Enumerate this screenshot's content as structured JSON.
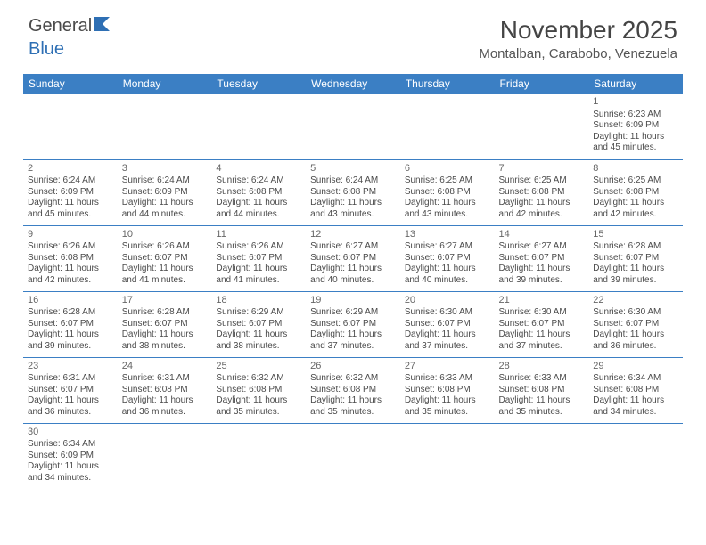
{
  "brand": {
    "name1": "General",
    "name2": "Blue"
  },
  "title": "November 2025",
  "location": "Montalban, Carabobo, Venezuela",
  "colors": {
    "header_bg": "#3b7fc4",
    "header_text": "#ffffff",
    "text": "#4a4a4a",
    "rule": "#3b7fc4"
  },
  "day_names": [
    "Sunday",
    "Monday",
    "Tuesday",
    "Wednesday",
    "Thursday",
    "Friday",
    "Saturday"
  ],
  "weeks": [
    [
      null,
      null,
      null,
      null,
      null,
      null,
      {
        "n": "1",
        "sr": "Sunrise: 6:23 AM",
        "ss": "Sunset: 6:09 PM",
        "dl": "Daylight: 11 hours and 45 minutes."
      }
    ],
    [
      {
        "n": "2",
        "sr": "Sunrise: 6:24 AM",
        "ss": "Sunset: 6:09 PM",
        "dl": "Daylight: 11 hours and 45 minutes."
      },
      {
        "n": "3",
        "sr": "Sunrise: 6:24 AM",
        "ss": "Sunset: 6:09 PM",
        "dl": "Daylight: 11 hours and 44 minutes."
      },
      {
        "n": "4",
        "sr": "Sunrise: 6:24 AM",
        "ss": "Sunset: 6:08 PM",
        "dl": "Daylight: 11 hours and 44 minutes."
      },
      {
        "n": "5",
        "sr": "Sunrise: 6:24 AM",
        "ss": "Sunset: 6:08 PM",
        "dl": "Daylight: 11 hours and 43 minutes."
      },
      {
        "n": "6",
        "sr": "Sunrise: 6:25 AM",
        "ss": "Sunset: 6:08 PM",
        "dl": "Daylight: 11 hours and 43 minutes."
      },
      {
        "n": "7",
        "sr": "Sunrise: 6:25 AM",
        "ss": "Sunset: 6:08 PM",
        "dl": "Daylight: 11 hours and 42 minutes."
      },
      {
        "n": "8",
        "sr": "Sunrise: 6:25 AM",
        "ss": "Sunset: 6:08 PM",
        "dl": "Daylight: 11 hours and 42 minutes."
      }
    ],
    [
      {
        "n": "9",
        "sr": "Sunrise: 6:26 AM",
        "ss": "Sunset: 6:08 PM",
        "dl": "Daylight: 11 hours and 42 minutes."
      },
      {
        "n": "10",
        "sr": "Sunrise: 6:26 AM",
        "ss": "Sunset: 6:07 PM",
        "dl": "Daylight: 11 hours and 41 minutes."
      },
      {
        "n": "11",
        "sr": "Sunrise: 6:26 AM",
        "ss": "Sunset: 6:07 PM",
        "dl": "Daylight: 11 hours and 41 minutes."
      },
      {
        "n": "12",
        "sr": "Sunrise: 6:27 AM",
        "ss": "Sunset: 6:07 PM",
        "dl": "Daylight: 11 hours and 40 minutes."
      },
      {
        "n": "13",
        "sr": "Sunrise: 6:27 AM",
        "ss": "Sunset: 6:07 PM",
        "dl": "Daylight: 11 hours and 40 minutes."
      },
      {
        "n": "14",
        "sr": "Sunrise: 6:27 AM",
        "ss": "Sunset: 6:07 PM",
        "dl": "Daylight: 11 hours and 39 minutes."
      },
      {
        "n": "15",
        "sr": "Sunrise: 6:28 AM",
        "ss": "Sunset: 6:07 PM",
        "dl": "Daylight: 11 hours and 39 minutes."
      }
    ],
    [
      {
        "n": "16",
        "sr": "Sunrise: 6:28 AM",
        "ss": "Sunset: 6:07 PM",
        "dl": "Daylight: 11 hours and 39 minutes."
      },
      {
        "n": "17",
        "sr": "Sunrise: 6:28 AM",
        "ss": "Sunset: 6:07 PM",
        "dl": "Daylight: 11 hours and 38 minutes."
      },
      {
        "n": "18",
        "sr": "Sunrise: 6:29 AM",
        "ss": "Sunset: 6:07 PM",
        "dl": "Daylight: 11 hours and 38 minutes."
      },
      {
        "n": "19",
        "sr": "Sunrise: 6:29 AM",
        "ss": "Sunset: 6:07 PM",
        "dl": "Daylight: 11 hours and 37 minutes."
      },
      {
        "n": "20",
        "sr": "Sunrise: 6:30 AM",
        "ss": "Sunset: 6:07 PM",
        "dl": "Daylight: 11 hours and 37 minutes."
      },
      {
        "n": "21",
        "sr": "Sunrise: 6:30 AM",
        "ss": "Sunset: 6:07 PM",
        "dl": "Daylight: 11 hours and 37 minutes."
      },
      {
        "n": "22",
        "sr": "Sunrise: 6:30 AM",
        "ss": "Sunset: 6:07 PM",
        "dl": "Daylight: 11 hours and 36 minutes."
      }
    ],
    [
      {
        "n": "23",
        "sr": "Sunrise: 6:31 AM",
        "ss": "Sunset: 6:07 PM",
        "dl": "Daylight: 11 hours and 36 minutes."
      },
      {
        "n": "24",
        "sr": "Sunrise: 6:31 AM",
        "ss": "Sunset: 6:08 PM",
        "dl": "Daylight: 11 hours and 36 minutes."
      },
      {
        "n": "25",
        "sr": "Sunrise: 6:32 AM",
        "ss": "Sunset: 6:08 PM",
        "dl": "Daylight: 11 hours and 35 minutes."
      },
      {
        "n": "26",
        "sr": "Sunrise: 6:32 AM",
        "ss": "Sunset: 6:08 PM",
        "dl": "Daylight: 11 hours and 35 minutes."
      },
      {
        "n": "27",
        "sr": "Sunrise: 6:33 AM",
        "ss": "Sunset: 6:08 PM",
        "dl": "Daylight: 11 hours and 35 minutes."
      },
      {
        "n": "28",
        "sr": "Sunrise: 6:33 AM",
        "ss": "Sunset: 6:08 PM",
        "dl": "Daylight: 11 hours and 35 minutes."
      },
      {
        "n": "29",
        "sr": "Sunrise: 6:34 AM",
        "ss": "Sunset: 6:08 PM",
        "dl": "Daylight: 11 hours and 34 minutes."
      }
    ],
    [
      {
        "n": "30",
        "sr": "Sunrise: 6:34 AM",
        "ss": "Sunset: 6:09 PM",
        "dl": "Daylight: 11 hours and 34 minutes."
      },
      null,
      null,
      null,
      null,
      null,
      null
    ]
  ]
}
